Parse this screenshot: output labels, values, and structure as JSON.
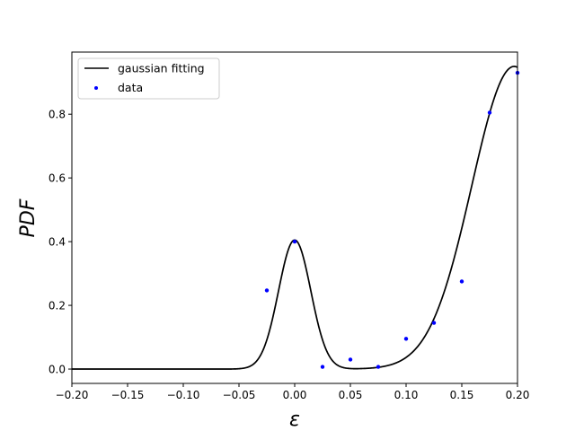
{
  "chart_data": {
    "type": "scatter",
    "xlabel": "ε",
    "ylabel": "PDF",
    "xlim": [
      -0.2,
      0.2
    ],
    "ylim": [
      -0.045,
      0.995
    ],
    "x_ticks": [
      -0.2,
      -0.15,
      -0.1,
      -0.05,
      0.0,
      0.05,
      0.1,
      0.15,
      0.2
    ],
    "x_tick_labels": [
      "−0.20",
      "−0.15",
      "−0.10",
      "−0.05",
      "0.00",
      "0.05",
      "0.10",
      "0.15",
      "0.20"
    ],
    "y_ticks": [
      0.0,
      0.2,
      0.4,
      0.6,
      0.8
    ],
    "y_tick_labels": [
      "0.0",
      "0.2",
      "0.4",
      "0.6",
      "0.8"
    ],
    "grid": false,
    "legend_position": "top-left",
    "series": [
      {
        "name": "gaussian fitting",
        "kind": "line",
        "color": "#000000",
        "components": [
          {
            "amplitude": 0.405,
            "mean": 0.0,
            "sigma": 0.0145
          },
          {
            "amplitude": 0.95,
            "mean": 0.197,
            "sigma": 0.038
          }
        ]
      },
      {
        "name": "data",
        "kind": "scatter",
        "color": "#0000ff",
        "x": [
          -0.025,
          0.0,
          0.025,
          0.05,
          0.075,
          0.1,
          0.125,
          0.15,
          0.175,
          0.2
        ],
        "y": [
          0.247,
          0.4,
          0.007,
          0.03,
          0.007,
          0.095,
          0.145,
          0.275,
          0.805,
          0.93
        ]
      }
    ]
  }
}
